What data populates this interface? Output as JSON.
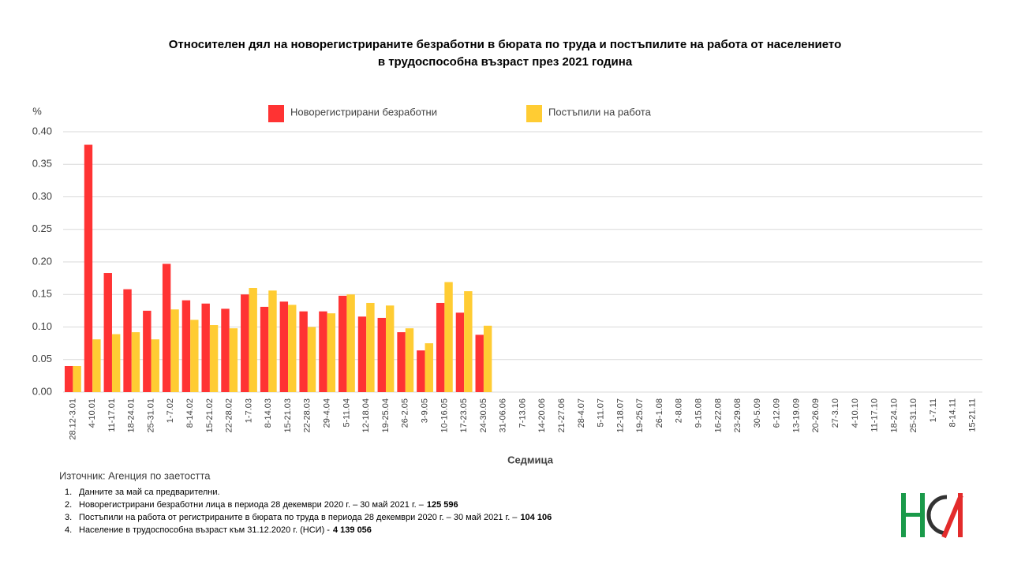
{
  "chart_data": {
    "type": "bar",
    "title": [
      "Относителен дял на новорегистрираните безработни в бюрата по труда и постъпилите на работа от населението",
      "в трудоспособна възраст през 2021 година"
    ],
    "y_axis_label": "%",
    "x_axis_label": "Седмица",
    "categories": [
      "28.12-3.01",
      "4-10.01",
      "11-17.01",
      "18-24.01",
      "25-31.01",
      "1-7.02",
      "8-14.02",
      "15-21.02",
      "22-28.02",
      "1-7.03",
      "8-14.03",
      "15-21.03",
      "22-28.03",
      "29-4.04",
      "5-11.04",
      "12-18.04",
      "19-25.04",
      "26-2.05",
      "3-9.05",
      "10-16.05",
      "17-23.05",
      "24-30.05",
      "31-06.06",
      "7-13.06",
      "14-20.06",
      "21-27.06",
      "28-4.07",
      "5-11.07",
      "12-18.07",
      "19-25.07",
      "26-1.08",
      "2-8.08",
      "9-15.08",
      "16-22.08",
      "23-29.08",
      "30-5.09",
      "6-12.09",
      "13-19.09",
      "20-26.09",
      "27-3.10",
      "4-10.10",
      "11-17.10",
      "18-24.10",
      "25-31.10",
      "1-7.11",
      "8-14.11",
      "15-21.11"
    ],
    "series": [
      {
        "name": "Новорегистрирани безработни",
        "color": "#ff3333",
        "values": [
          0.04,
          0.38,
          0.183,
          0.158,
          0.125,
          0.197,
          0.141,
          0.136,
          0.128,
          0.15,
          0.131,
          0.139,
          0.124,
          0.124,
          0.148,
          0.116,
          0.114,
          0.092,
          0.064,
          0.137,
          0.122,
          0.088,
          null,
          null,
          null,
          null,
          null,
          null,
          null,
          null,
          null,
          null,
          null,
          null,
          null,
          null,
          null,
          null,
          null,
          null,
          null,
          null,
          null,
          null,
          null,
          null,
          null
        ]
      },
      {
        "name": "Постъпили на работа",
        "color": "#ffcc33",
        "values": [
          0.04,
          0.081,
          0.089,
          0.092,
          0.081,
          0.127,
          0.111,
          0.103,
          0.098,
          0.16,
          0.156,
          0.134,
          0.1,
          0.121,
          0.15,
          0.137,
          0.133,
          0.098,
          0.075,
          0.169,
          0.155,
          0.102,
          null,
          null,
          null,
          null,
          null,
          null,
          null,
          null,
          null,
          null,
          null,
          null,
          null,
          null,
          null,
          null,
          null,
          null,
          null,
          null,
          null,
          null,
          null,
          null,
          null
        ]
      }
    ],
    "ylim": [
      0,
      0.4
    ],
    "yticks": [
      {
        "value": 0,
        "label": "0.00"
      },
      {
        "value": 0.05,
        "label": "0.05"
      },
      {
        "value": 0.1,
        "label": "0.10"
      },
      {
        "value": 0.15,
        "label": "0.15"
      },
      {
        "value": 0.2,
        "label": "0.20"
      },
      {
        "value": 0.25,
        "label": "0.25"
      },
      {
        "value": 0.3,
        "label": "0.30"
      },
      {
        "value": 0.35,
        "label": "0.35"
      },
      {
        "value": 0.4,
        "label": "0.40"
      }
    ],
    "grid": true,
    "legend": "top",
    "source": "Източник: Агенция по заетостта",
    "notes": [
      {
        "number": "1.",
        "text": "Данните за май са предварителни."
      },
      {
        "number": "2.",
        "text": "Новорегистрирани безработни лица в периода  28 декември  2020 г. – 30 май 2021 г. –",
        "bold": "125 596"
      },
      {
        "number": "3.",
        "text": "Постъпили на работа от регистрираните в бюрата по труда в периода  28 декември  2020 г. – 30 май 2021 г. –",
        "bold": "104 106"
      },
      {
        "number": "4.",
        "text": "Население в трудоспособна възраст към 31.12.2020 г. (НСИ)  -",
        "bold": "4 139 056"
      }
    ]
  }
}
